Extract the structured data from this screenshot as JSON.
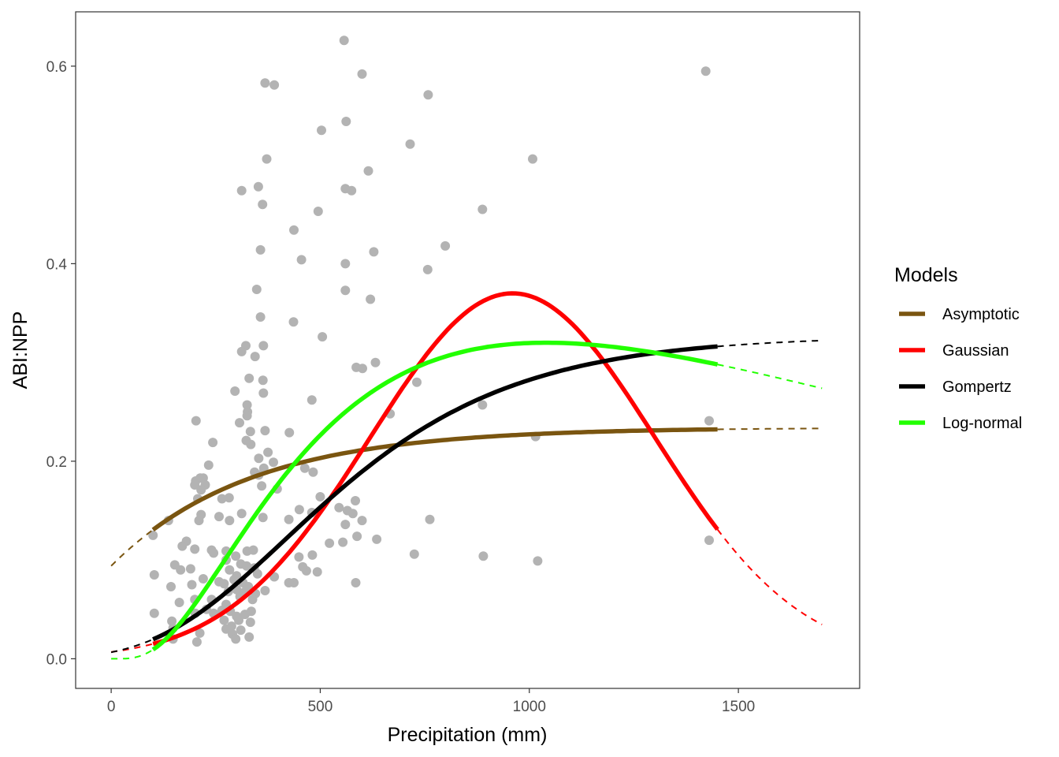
{
  "chart_data": {
    "type": "scatter",
    "title": "",
    "xlabel": "Precipitation (mm)",
    "ylabel": "ABI:NPP",
    "xlim": [
      -85,
      1790
    ],
    "ylim": [
      -0.03,
      0.655
    ],
    "x_ticks": [
      0,
      500,
      1000,
      1500
    ],
    "x_tick_labels": [
      "0",
      "500",
      "1000",
      "1500"
    ],
    "y_ticks": [
      0.0,
      0.2,
      0.4,
      0.6
    ],
    "y_tick_labels": [
      "0.0",
      "0.2",
      "0.4",
      "0.6"
    ],
    "grid": false,
    "legend": {
      "title": "Models",
      "placement": "right",
      "entries": [
        {
          "label": "Asymptotic",
          "color": "#7a5510"
        },
        {
          "label": "Gaussian",
          "color": "#ff0000"
        },
        {
          "label": "Gompertz",
          "color": "#000000"
        },
        {
          "label": "Log-normal",
          "color": "#22ff00"
        }
      ]
    },
    "point_color": "#b3b3b3",
    "points": [
      [
        557,
        0.626
      ],
      [
        1422,
        0.595
      ],
      [
        600,
        0.592
      ],
      [
        368,
        0.583
      ],
      [
        390,
        0.581
      ],
      [
        758,
        0.571
      ],
      [
        562,
        0.544
      ],
      [
        503,
        0.535
      ],
      [
        715,
        0.521
      ],
      [
        372,
        0.506
      ],
      [
        1008,
        0.506
      ],
      [
        615,
        0.494
      ],
      [
        312,
        0.474
      ],
      [
        352,
        0.478
      ],
      [
        560,
        0.476
      ],
      [
        575,
        0.474
      ],
      [
        362,
        0.46
      ],
      [
        495,
        0.453
      ],
      [
        888,
        0.455
      ],
      [
        437,
        0.434
      ],
      [
        357,
        0.414
      ],
      [
        799,
        0.418
      ],
      [
        628,
        0.412
      ],
      [
        455,
        0.404
      ],
      [
        560,
        0.4
      ],
      [
        757,
        0.394
      ],
      [
        348,
        0.374
      ],
      [
        560,
        0.373
      ],
      [
        620,
        0.364
      ],
      [
        357,
        0.346
      ],
      [
        436,
        0.341
      ],
      [
        505,
        0.326
      ],
      [
        322,
        0.317
      ],
      [
        364,
        0.317
      ],
      [
        312,
        0.311
      ],
      [
        344,
        0.306
      ],
      [
        586,
        0.295
      ],
      [
        601,
        0.294
      ],
      [
        632,
        0.3
      ],
      [
        363,
        0.282
      ],
      [
        330,
        0.284
      ],
      [
        731,
        0.28
      ],
      [
        364,
        0.269
      ],
      [
        296,
        0.271
      ],
      [
        325,
        0.257
      ],
      [
        480,
        0.262
      ],
      [
        888,
        0.257
      ],
      [
        326,
        0.25
      ],
      [
        325,
        0.246
      ],
      [
        667,
        0.248
      ],
      [
        307,
        0.239
      ],
      [
        1430,
        0.241
      ],
      [
        203,
        0.241
      ],
      [
        368,
        0.231
      ],
      [
        333,
        0.23
      ],
      [
        426,
        0.229
      ],
      [
        1015,
        0.225
      ],
      [
        323,
        0.221
      ],
      [
        334,
        0.217
      ],
      [
        243,
        0.219
      ],
      [
        375,
        0.209
      ],
      [
        353,
        0.203
      ],
      [
        388,
        0.199
      ],
      [
        233,
        0.196
      ],
      [
        365,
        0.193
      ],
      [
        463,
        0.193
      ],
      [
        343,
        0.189
      ],
      [
        483,
        0.189
      ],
      [
        353,
        0.186
      ],
      [
        213,
        0.183
      ],
      [
        220,
        0.183
      ],
      [
        202,
        0.18
      ],
      [
        200,
        0.176
      ],
      [
        225,
        0.176
      ],
      [
        360,
        0.175
      ],
      [
        215,
        0.171
      ],
      [
        397,
        0.172
      ],
      [
        545,
        0.153
      ],
      [
        207,
        0.162
      ],
      [
        265,
        0.162
      ],
      [
        282,
        0.163
      ],
      [
        500,
        0.164
      ],
      [
        584,
        0.16
      ],
      [
        565,
        0.15
      ],
      [
        450,
        0.151
      ],
      [
        578,
        0.147
      ],
      [
        600,
        0.14
      ],
      [
        363,
        0.143
      ],
      [
        425,
        0.141
      ],
      [
        215,
        0.146
      ],
      [
        210,
        0.14
      ],
      [
        137,
        0.14
      ],
      [
        258,
        0.144
      ],
      [
        283,
        0.14
      ],
      [
        312,
        0.147
      ],
      [
        480,
        0.148
      ],
      [
        560,
        0.136
      ],
      [
        588,
        0.124
      ],
      [
        635,
        0.121
      ],
      [
        100,
        0.125
      ],
      [
        180,
        0.119
      ],
      [
        554,
        0.118
      ],
      [
        522,
        0.117
      ],
      [
        170,
        0.114
      ],
      [
        200,
        0.111
      ],
      [
        240,
        0.11
      ],
      [
        1430,
        0.12
      ],
      [
        762,
        0.141
      ],
      [
        725,
        0.106
      ],
      [
        890,
        0.104
      ],
      [
        1020,
        0.099
      ],
      [
        245,
        0.107
      ],
      [
        275,
        0.109
      ],
      [
        325,
        0.109
      ],
      [
        340,
        0.11
      ],
      [
        449,
        0.103
      ],
      [
        481,
        0.105
      ],
      [
        298,
        0.104
      ],
      [
        275,
        0.1
      ],
      [
        310,
        0.096
      ],
      [
        324,
        0.094
      ],
      [
        342,
        0.092
      ],
      [
        152,
        0.095
      ],
      [
        166,
        0.09
      ],
      [
        283,
        0.09
      ],
      [
        300,
        0.084
      ],
      [
        350,
        0.086
      ],
      [
        390,
        0.083
      ],
      [
        467,
        0.089
      ],
      [
        493,
        0.088
      ],
      [
        458,
        0.093
      ],
      [
        190,
        0.091
      ],
      [
        103,
        0.085
      ],
      [
        220,
        0.081
      ],
      [
        258,
        0.078
      ],
      [
        270,
        0.076
      ],
      [
        294,
        0.08
      ],
      [
        315,
        0.077
      ],
      [
        328,
        0.073
      ],
      [
        345,
        0.066
      ],
      [
        368,
        0.069
      ],
      [
        437,
        0.077
      ],
      [
        425,
        0.077
      ],
      [
        585,
        0.077
      ],
      [
        143,
        0.073
      ],
      [
        193,
        0.075
      ],
      [
        280,
        0.068
      ],
      [
        300,
        0.07
      ],
      [
        320,
        0.068
      ],
      [
        240,
        0.06
      ],
      [
        200,
        0.06
      ],
      [
        275,
        0.055
      ],
      [
        308,
        0.063
      ],
      [
        338,
        0.06
      ],
      [
        228,
        0.05
      ],
      [
        245,
        0.046
      ],
      [
        265,
        0.049
      ],
      [
        285,
        0.048
      ],
      [
        300,
        0.043
      ],
      [
        320,
        0.045
      ],
      [
        335,
        0.048
      ],
      [
        103,
        0.046
      ],
      [
        163,
        0.057
      ],
      [
        201,
        0.046
      ],
      [
        270,
        0.039
      ],
      [
        288,
        0.033
      ],
      [
        305,
        0.039
      ],
      [
        333,
        0.037
      ],
      [
        148,
        0.031
      ],
      [
        275,
        0.03
      ],
      [
        290,
        0.025
      ],
      [
        298,
        0.02
      ],
      [
        310,
        0.029
      ],
      [
        330,
        0.022
      ],
      [
        212,
        0.026
      ],
      [
        205,
        0.017
      ],
      [
        148,
        0.02
      ],
      [
        145,
        0.038
      ]
    ],
    "series": [
      {
        "name": "Asymptotic",
        "color": "#7a5510",
        "solid_range": [
          100,
          1450
        ],
        "extrapolated": true
      },
      {
        "name": "Gaussian",
        "color": "#ff0000",
        "solid_range": [
          100,
          1450
        ],
        "extrapolated": true
      },
      {
        "name": "Gompertz",
        "color": "#000000",
        "solid_range": [
          100,
          1450
        ],
        "extrapolated": true
      },
      {
        "name": "Log-normal",
        "color": "#22ff00",
        "solid_range": [
          100,
          1450
        ],
        "extrapolated": true
      }
    ]
  }
}
